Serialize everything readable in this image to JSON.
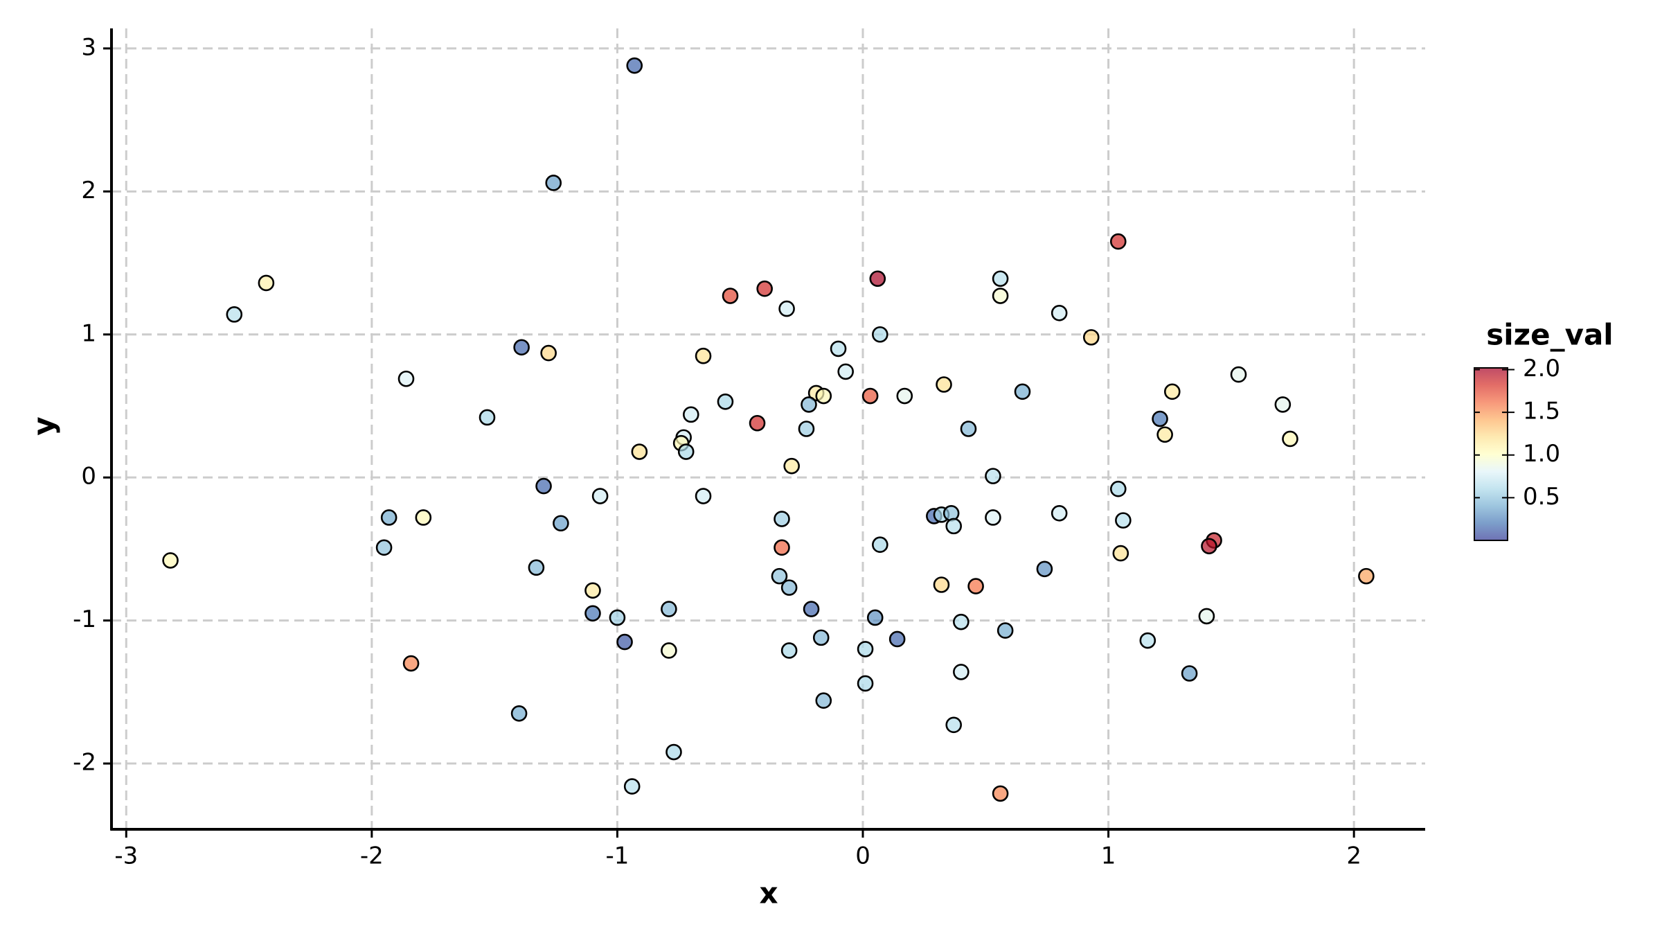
{
  "chart_data": {
    "type": "scatter",
    "x_label": "x",
    "y_label": "y",
    "xlim": [
      -3.06,
      2.29
    ],
    "ylim": [
      -2.46,
      3.14
    ],
    "xticks": [
      -3,
      -2,
      -1,
      0,
      1,
      2
    ],
    "yticks": [
      -2,
      -1,
      0,
      1,
      2,
      3
    ],
    "grid": true,
    "x": [
      -0.93,
      -1.26,
      -2.43,
      -2.56,
      1.04,
      0.06,
      -0.54,
      -0.4,
      -0.31,
      0.56,
      0.56,
      0.8,
      0.93,
      0.07,
      -0.1,
      -0.07,
      -1.39,
      -1.28,
      -1.86,
      -0.65,
      0.33,
      1.53,
      1.26,
      1.71,
      -0.19,
      -0.16,
      0.03,
      0.17,
      0.65,
      -0.56,
      -0.22,
      -1.53,
      -0.7,
      -0.43,
      1.21,
      -0.23,
      0.43,
      1.23,
      1.74,
      -0.73,
      -0.74,
      -0.72,
      -0.91,
      -0.29,
      0.53,
      -1.3,
      -1.07,
      -0.65,
      1.04,
      -1.93,
      -1.79,
      -1.23,
      -0.33,
      0.29,
      0.32,
      0.36,
      0.37,
      0.53,
      0.8,
      1.06,
      1.43,
      1.41,
      -2.82,
      -1.95,
      -0.33,
      0.07,
      1.05,
      -1.33,
      0.74,
      -0.34,
      -0.3,
      0.32,
      0.46,
      2.05,
      -1.1,
      -1.1,
      -0.79,
      -0.21,
      -1.0,
      0.05,
      0.4,
      1.4,
      0.58,
      -0.17,
      0.14,
      -0.97,
      1.16,
      -0.79,
      -0.3,
      0.01,
      -1.84,
      1.33,
      0.4,
      0.01,
      -0.16,
      -1.4,
      0.37,
      -0.77,
      -0.94,
      0.56
    ],
    "values": [
      2.88,
      2.06,
      1.36,
      1.14,
      1.65,
      1.39,
      1.27,
      1.32,
      1.18,
      1.39,
      1.27,
      1.15,
      0.98,
      1.0,
      0.9,
      0.74,
      0.91,
      0.87,
      0.69,
      0.85,
      0.65,
      0.72,
      0.6,
      0.51,
      0.59,
      0.57,
      0.57,
      0.57,
      0.6,
      0.53,
      0.51,
      0.42,
      0.44,
      0.38,
      0.41,
      0.34,
      0.34,
      0.3,
      0.27,
      0.28,
      0.24,
      0.18,
      0.18,
      0.08,
      0.01,
      -0.06,
      -0.13,
      -0.13,
      -0.08,
      -0.28,
      -0.28,
      -0.32,
      -0.29,
      -0.27,
      -0.26,
      -0.25,
      -0.34,
      -0.28,
      -0.25,
      -0.3,
      -0.44,
      -0.48,
      -0.58,
      -0.49,
      -0.49,
      -0.47,
      -0.53,
      -0.63,
      -0.64,
      -0.69,
      -0.77,
      -0.75,
      -0.76,
      -0.69,
      -0.79,
      -0.95,
      -0.92,
      -0.92,
      -0.98,
      -0.98,
      -1.01,
      -0.97,
      -1.07,
      -1.12,
      -1.13,
      -1.15,
      -1.14,
      -1.21,
      -1.21,
      -1.2,
      -1.3,
      -1.37,
      -1.36,
      -1.44,
      -1.56,
      -1.65,
      -1.73,
      -1.92,
      -2.16,
      -2.21
    ],
    "color_values": [
      0.15,
      0.35,
      1.1,
      0.65,
      1.85,
      2.0,
      1.75,
      1.85,
      0.75,
      0.65,
      0.95,
      0.75,
      1.25,
      0.6,
      0.65,
      0.75,
      0.15,
      1.25,
      0.8,
      1.2,
      1.2,
      0.85,
      1.15,
      0.85,
      1.15,
      1.05,
      1.7,
      0.85,
      0.4,
      0.6,
      0.45,
      0.6,
      0.75,
      1.85,
      0.2,
      0.55,
      0.45,
      1.15,
      1.05,
      0.75,
      1.05,
      0.6,
      1.2,
      1.15,
      0.65,
      0.15,
      0.75,
      0.75,
      0.6,
      0.4,
      1.05,
      0.35,
      0.55,
      0.15,
      0.6,
      0.5,
      0.65,
      0.8,
      0.75,
      0.65,
      1.9,
      1.95,
      1.05,
      0.5,
      1.65,
      0.6,
      1.2,
      0.45,
      0.3,
      0.5,
      0.45,
      1.25,
      1.6,
      1.45,
      1.15,
      0.2,
      0.45,
      0.15,
      0.55,
      0.3,
      0.65,
      0.85,
      0.4,
      0.45,
      0.15,
      0.1,
      0.65,
      0.95,
      0.6,
      0.6,
      1.55,
      0.35,
      0.75,
      0.6,
      0.45,
      0.4,
      0.65,
      0.6,
      0.65,
      1.55
    ],
    "colorbar": {
      "title": "size_val",
      "lim": [
        0,
        2.02
      ],
      "ticks": [
        0.5,
        {
          "value": 1,
          "label": "1.0"
        },
        1.5,
        {
          "value": 2,
          "label": "2.0"
        }
      ],
      "colormap": [
        "#313695",
        "#4575b4",
        "#74add1",
        "#abd9e9",
        "#e0f3f8",
        "#ffffbf",
        "#fee090",
        "#fdae61",
        "#f46d43",
        "#d73027",
        "#a50026"
      ],
      "alpha": 0.7
    }
  }
}
